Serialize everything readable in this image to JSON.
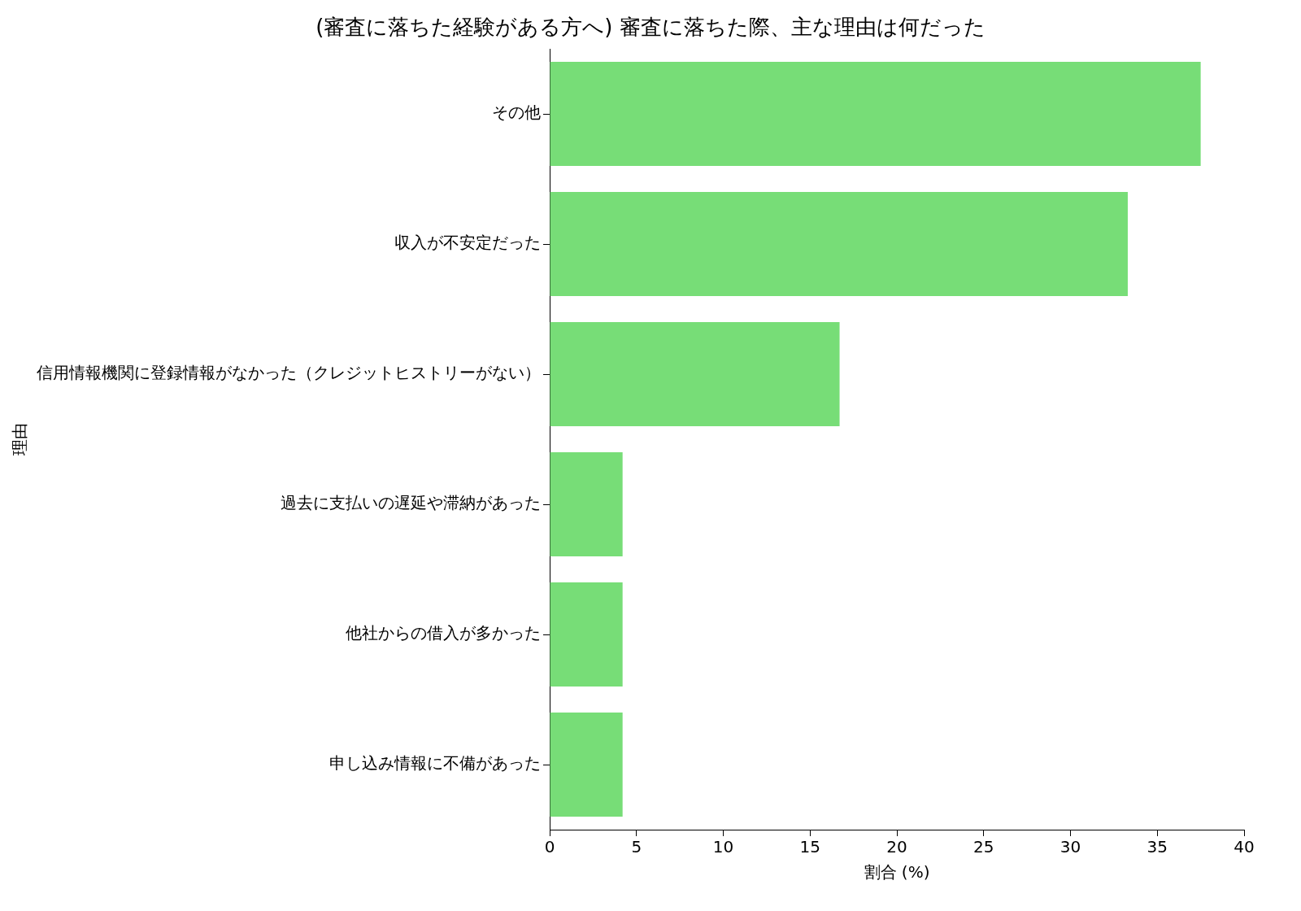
{
  "chart_data": {
    "type": "bar",
    "orientation": "horizontal",
    "title": "(審査に落ちた経験がある方へ) 審査に落ちた際、主な理由は何だった",
    "xlabel": "割合 (%)",
    "ylabel": "理由",
    "categories": [
      "その他",
      "収入が不安定だった",
      "信用情報機関に登録情報がなかった（クレジットヒストリーがない）",
      "過去に支払いの遅延や滞納があった",
      "他社からの借入が多かった",
      "申し込み情報に不備があった"
    ],
    "values": [
      37.5,
      33.3,
      16.7,
      4.2,
      4.2,
      4.2
    ],
    "color": "#77dd77",
    "xlim": [
      0,
      40
    ],
    "xticks": [
      0,
      5,
      10,
      15,
      20,
      25,
      30,
      35,
      40
    ],
    "grid": false,
    "legend": false
  }
}
